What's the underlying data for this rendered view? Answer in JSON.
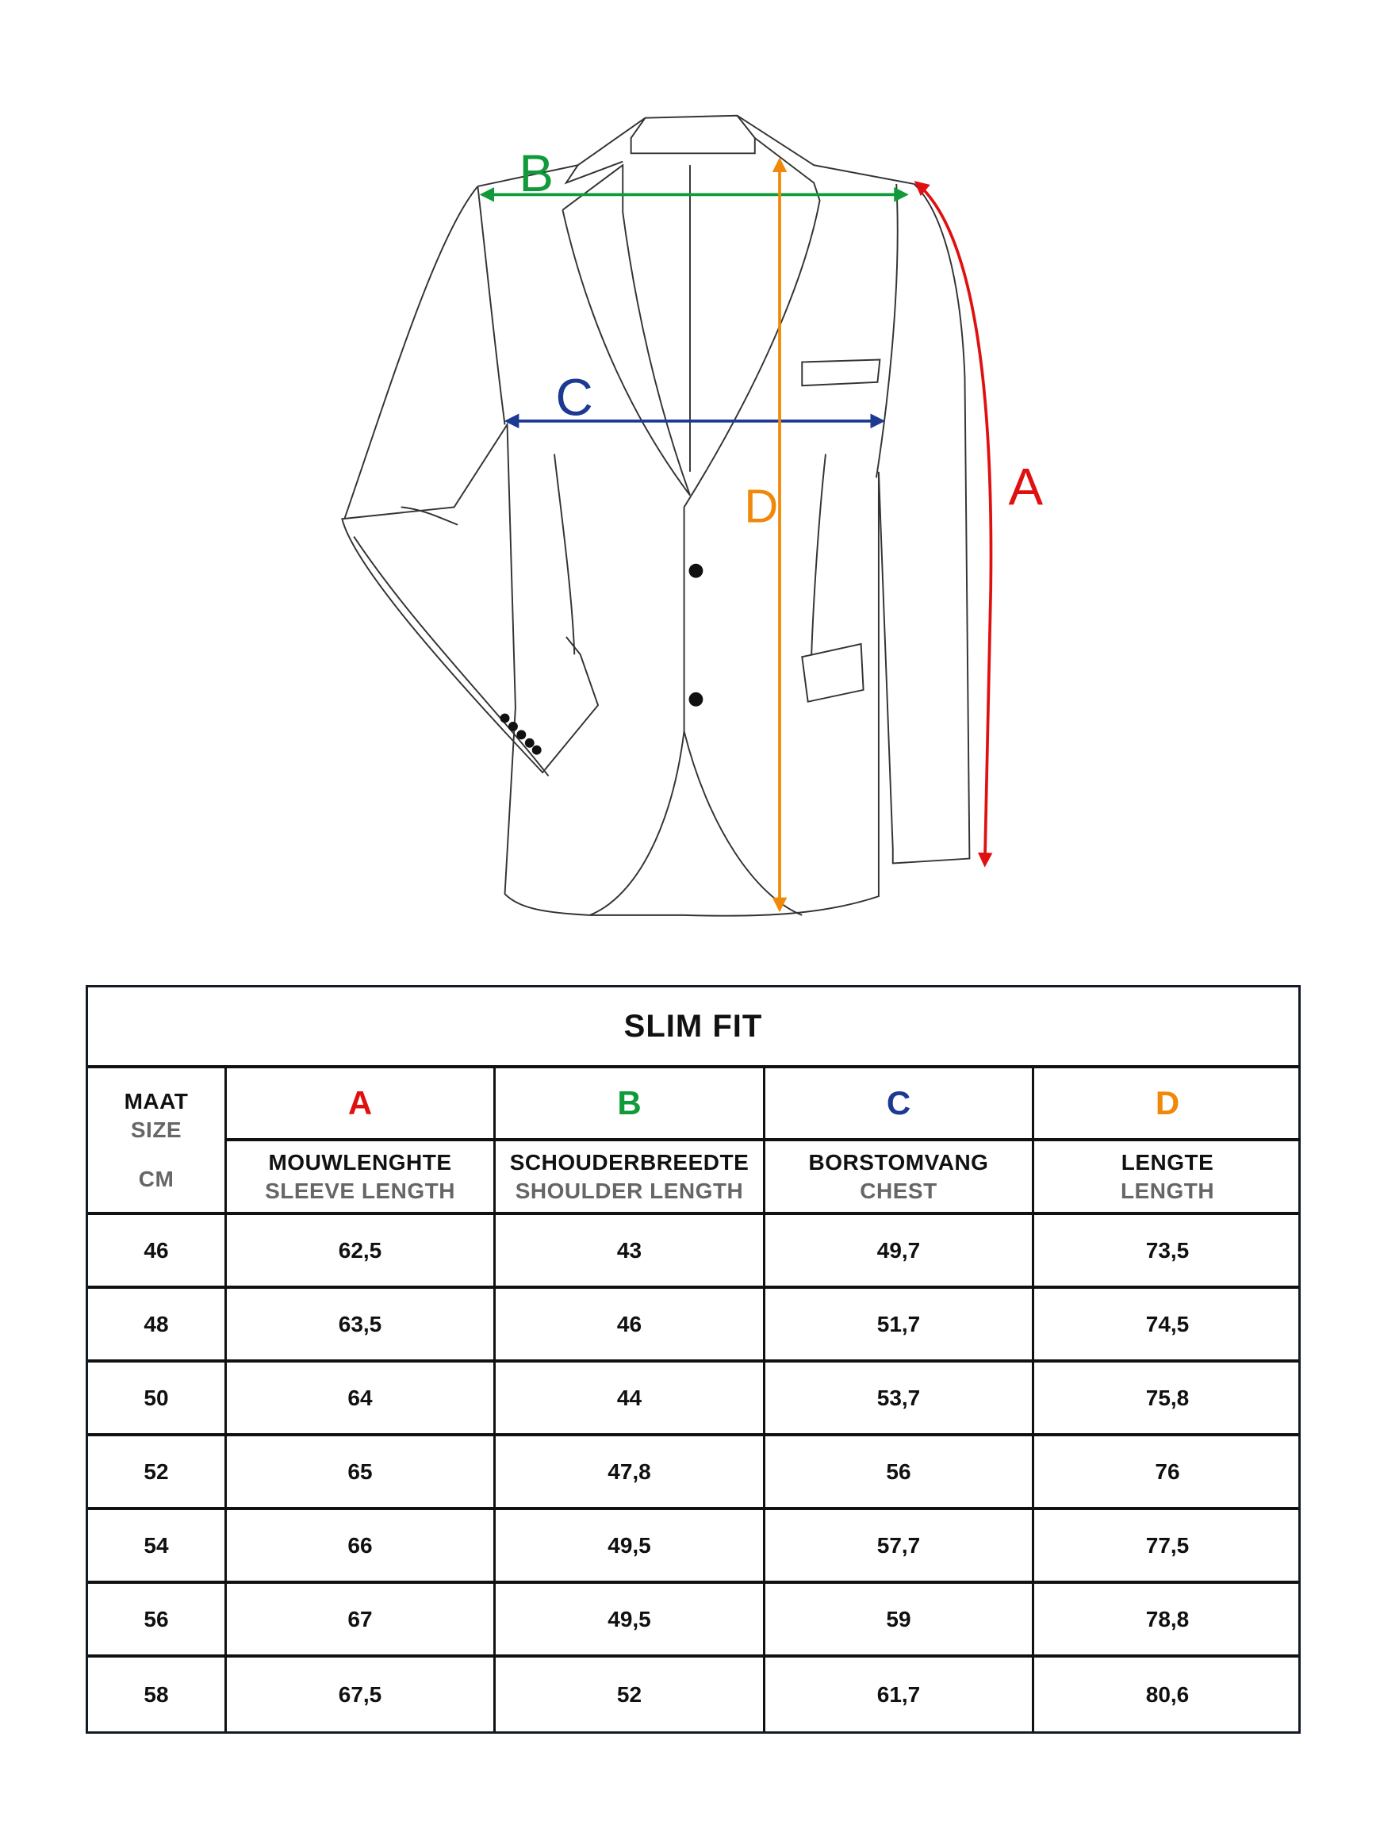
{
  "diagram": {
    "labels": {
      "A": "A",
      "B": "B",
      "C": "C",
      "D": "D"
    },
    "colors": {
      "A": "#e01010",
      "B": "#119a3a",
      "C": "#1c3a94",
      "D": "#f0890a",
      "outline": "#333333"
    }
  },
  "table": {
    "title": "SLIM FIT",
    "size_header": {
      "line1": "MAAT",
      "line2": "SIZE",
      "unit": "CM"
    },
    "columns": [
      {
        "letter": "A",
        "nl": "MOUWLENGHTE",
        "en": "SLEEVE LENGTH",
        "color": "#e01010"
      },
      {
        "letter": "B",
        "nl": "SCHOUDERBREEDTE",
        "en": "SHOULDER LENGTH",
        "color": "#119a3a"
      },
      {
        "letter": "C",
        "nl": "BORSTOMVANG",
        "en": "CHEST",
        "color": "#1c3a94"
      },
      {
        "letter": "D",
        "nl": "LENGTE",
        "en": "LENGTH",
        "color": "#f0890a"
      }
    ],
    "rows": [
      [
        "46",
        "62,5",
        "43",
        "49,7",
        "73,5"
      ],
      [
        "48",
        "63,5",
        "46",
        "51,7",
        "74,5"
      ],
      [
        "50",
        "64",
        "44",
        "53,7",
        "75,8"
      ],
      [
        "52",
        "65",
        "47,8",
        "56",
        "76"
      ],
      [
        "54",
        "66",
        "49,5",
        "57,7",
        "77,5"
      ],
      [
        "56",
        "67",
        "49,5",
        "59",
        "78,8"
      ],
      [
        "58",
        "67,5",
        "52",
        "61,7",
        "80,6"
      ]
    ]
  }
}
